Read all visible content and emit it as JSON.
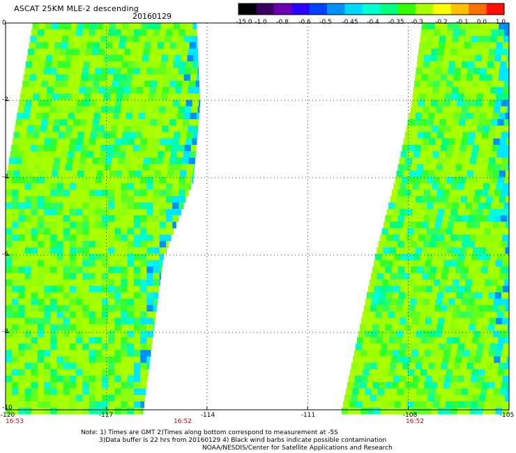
{
  "header": {
    "title": "ASCAT 25KM MLE-2 descending",
    "date": "20160129"
  },
  "colorbar": {
    "labels": [
      "-15.0",
      "-1.0",
      "-0.8",
      "-0.6",
      "-0.5",
      "-0.45",
      "-0.4",
      "-0.35",
      "-0.3",
      "-0.2",
      "-0.1",
      "0.0",
      "1.0"
    ],
    "colors": [
      "#000000",
      "#3a0060",
      "#6a00b0",
      "#2a00ff",
      "#0040ff",
      "#0090ff",
      "#00d8ff",
      "#00ffd0",
      "#00ff80",
      "#30ff00",
      "#a8ff00",
      "#ffff00",
      "#ffc000",
      "#ff7000",
      "#ff1000"
    ]
  },
  "axes": {
    "x_ticks": [
      "-120",
      "-117",
      "-114",
      "-111",
      "-108",
      "-105"
    ],
    "y_ticks": [
      "0",
      "-2",
      "-4",
      "-6",
      "-8",
      "-10"
    ],
    "x_range": [
      -120,
      -105
    ],
    "y_range": [
      -10,
      0
    ]
  },
  "times": [
    {
      "label": "16:53",
      "lon": -120
    },
    {
      "label": "16:52",
      "lon": -115.4
    },
    {
      "label": "16:52",
      "lon": -107.8
    }
  ],
  "swaths": [
    {
      "name": "west-swath",
      "lat": [
        0,
        -2,
        -4,
        -6,
        -8,
        -10
      ],
      "east_edge_lon": [
        -114.3,
        -114.2,
        -114.4,
        -115.3,
        -115.6,
        -115.9
      ],
      "west_edge_lon": [
        -119.2,
        -119.6,
        -120,
        -120,
        -120,
        -120
      ]
    },
    {
      "name": "east-swath",
      "lat": [
        0,
        -2,
        -4,
        -6,
        -8,
        -10
      ],
      "west_edge_lon": [
        -107.6,
        -107.9,
        -108.4,
        -109.0,
        -109.5,
        -110.0
      ],
      "east_edge_lon": [
        -105,
        -105,
        -105,
        -105,
        -105,
        -105
      ]
    }
  ],
  "notes": {
    "line1": "Note: 1) Times are GMT 2)Times along bottom correspond to measurement at -5S",
    "line2": "3)Data buffer is 22 hrs from 20160129 4) Black wind barbs indicate possible contamination",
    "line3": "NOAA/NESDIS/Center for Satellite Applications and Research"
  }
}
